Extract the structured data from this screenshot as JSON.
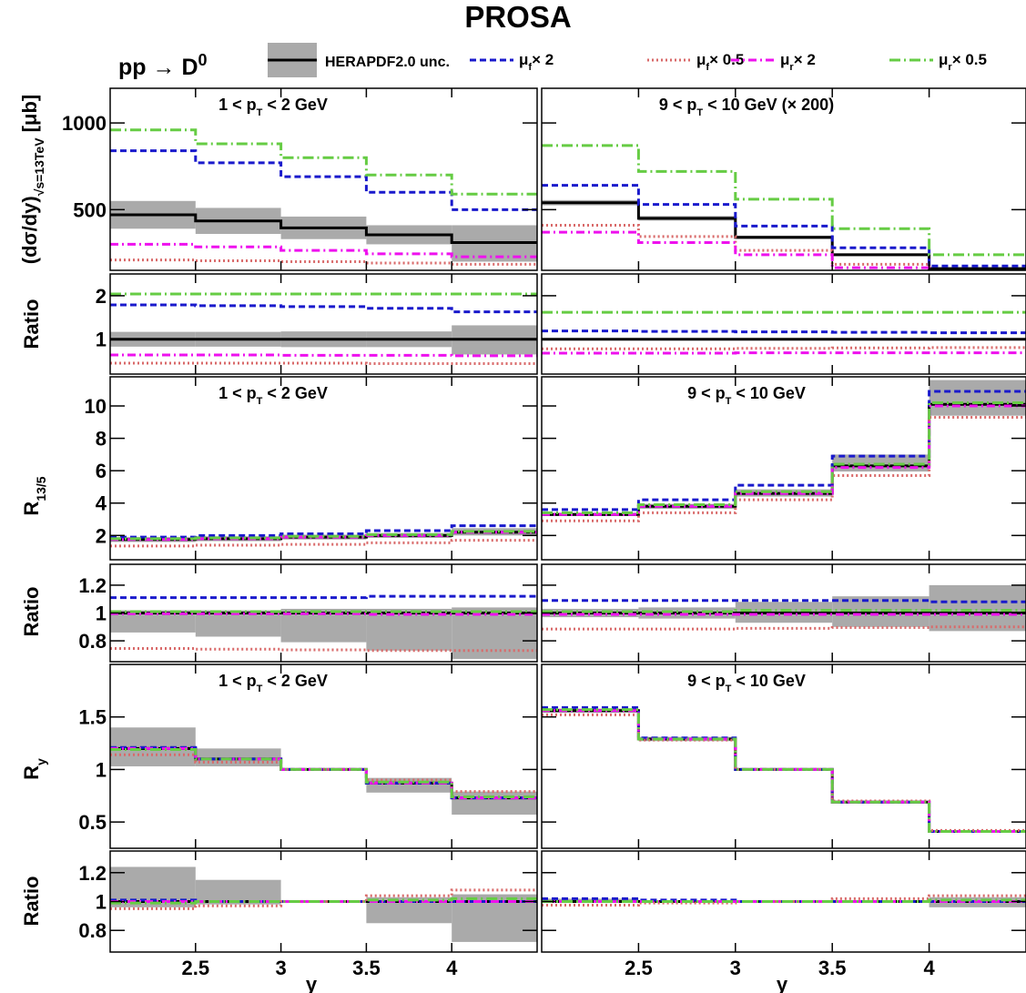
{
  "title": "PROSA",
  "process": {
    "main": "pp",
    "arrow": "→",
    "particle": "D",
    "sup": "0"
  },
  "legend": [
    {
      "key": "herapdf",
      "label": "HERAPDF2.0 unc.",
      "color": "#000000",
      "style": "solid-band"
    },
    {
      "key": "muf2",
      "sym": "μ",
      "sub": "f",
      "suffix": "× 2",
      "color": "#1a1acc",
      "style": "dashed"
    },
    {
      "key": "muf05",
      "sym": "μ",
      "sub": "f",
      "suffix": "× 0.5",
      "color": "#d96a6a",
      "style": "dotted"
    },
    {
      "key": "mur2",
      "sym": "μ",
      "sub": "r",
      "suffix": "× 2",
      "color": "#ee11ee",
      "style": "dashdot"
    },
    {
      "key": "mur05",
      "sym": "μ",
      "sub": "r",
      "suffix": "× 0.5",
      "color": "#66cc44",
      "style": "dashdot-long"
    }
  ],
  "labels": {
    "xlabel": "y",
    "ratio": "Ratio",
    "xsec_ylabel": {
      "main": "(dσ/dy)",
      "sub": "√s=13TeV",
      "unit": "[μb]"
    },
    "r135_ylabel": {
      "main": "R",
      "sub": "13/5"
    },
    "ry_ylabel": {
      "main": "R",
      "sub": "y"
    }
  },
  "bins": [
    2.0,
    2.5,
    3.0,
    3.5,
    4.0,
    4.5
  ],
  "xticks": [
    2.5,
    3,
    3.5,
    4
  ],
  "columns": [
    {
      "key": "low",
      "range": {
        "pre": "1 < p",
        "sub": "T",
        "post": " <  2 GeV"
      },
      "scale_note": ""
    },
    {
      "key": "high",
      "range": {
        "pre": "9 < p",
        "sub": "T",
        "post": " < 10 GeV"
      },
      "scale_note": " (× 200)"
    }
  ],
  "chart_data": [
    {
      "type": "line",
      "id": "xsec-low",
      "ylim": [
        150,
        1200
      ],
      "yticks": [
        500,
        1000
      ],
      "central": [
        470,
        435,
        395,
        355,
        310
      ],
      "band": [
        [
          390,
          550
        ],
        [
          360,
          510
        ],
        [
          330,
          460
        ],
        [
          300,
          410
        ],
        [
          200,
          410
        ]
      ],
      "series": [
        {
          "key": "muf2",
          "values": [
            840,
            770,
            690,
            600,
            500
          ]
        },
        {
          "key": "muf05",
          "values": [
            210,
            205,
            200,
            192,
            185
          ]
        },
        {
          "key": "mur2",
          "values": [
            300,
            285,
            265,
            245,
            228
          ]
        },
        {
          "key": "mur05",
          "values": [
            960,
            880,
            800,
            700,
            590
          ]
        }
      ]
    },
    {
      "type": "line",
      "id": "xsec-high",
      "ylim": [
        150,
        1200
      ],
      "yticks": [
        500,
        1000
      ],
      "central": [
        540,
        450,
        340,
        240,
        160
      ],
      "band": [
        [
          525,
          555
        ],
        [
          437,
          463
        ],
        [
          330,
          350
        ],
        [
          232,
          248
        ],
        [
          152,
          168
        ]
      ],
      "series": [
        {
          "key": "muf2",
          "values": [
            640,
            530,
            405,
            280,
            175
          ]
        },
        {
          "key": "muf05",
          "values": [
            410,
            345,
            265,
            185,
            125
          ]
        },
        {
          "key": "mur2",
          "values": [
            370,
            310,
            240,
            165,
            110
          ]
        },
        {
          "key": "mur05",
          "values": [
            870,
            720,
            560,
            390,
            240
          ]
        }
      ]
    },
    {
      "type": "line",
      "id": "ratio1-low",
      "ylim": [
        0.2,
        2.5
      ],
      "yticks": [
        1,
        2
      ],
      "central": [
        1,
        1,
        1,
        1,
        1
      ],
      "band": [
        [
          0.83,
          1.17
        ],
        [
          0.83,
          1.17
        ],
        [
          0.82,
          1.18
        ],
        [
          0.82,
          1.18
        ],
        [
          0.65,
          1.32
        ]
      ],
      "series": [
        {
          "key": "muf2",
          "values": [
            1.79,
            1.77,
            1.75,
            1.71,
            1.63
          ]
        },
        {
          "key": "muf05",
          "values": [
            0.45,
            0.45,
            0.45,
            0.44,
            0.44
          ]
        },
        {
          "key": "mur2",
          "values": [
            0.64,
            0.64,
            0.63,
            0.63,
            0.62
          ]
        },
        {
          "key": "mur05",
          "values": [
            2.04,
            2.04,
            2.04,
            2.04,
            2.04
          ]
        }
      ]
    },
    {
      "type": "line",
      "id": "ratio1-high",
      "ylim": [
        0.2,
        2.5
      ],
      "yticks": [
        1,
        2
      ],
      "central": [
        1,
        1,
        1,
        1,
        1
      ],
      "band": [
        [
          0.98,
          1.02
        ],
        [
          0.98,
          1.02
        ],
        [
          0.98,
          1.02
        ],
        [
          0.98,
          1.02
        ],
        [
          0.98,
          1.02
        ]
      ],
      "series": [
        {
          "key": "muf2",
          "values": [
            1.19,
            1.18,
            1.17,
            1.16,
            1.15
          ]
        },
        {
          "key": "muf05",
          "values": [
            0.78,
            0.78,
            0.79,
            0.8,
            0.81
          ]
        },
        {
          "key": "mur2",
          "values": [
            0.68,
            0.68,
            0.69,
            0.69,
            0.69
          ]
        },
        {
          "key": "mur05",
          "values": [
            1.62,
            1.62,
            1.62,
            1.62,
            1.62
          ]
        }
      ]
    },
    {
      "type": "line",
      "id": "r135-low",
      "ylim": [
        0.5,
        11.8
      ],
      "yticks": [
        2,
        4,
        6,
        8,
        10
      ],
      "central": [
        1.75,
        1.8,
        1.9,
        2.0,
        2.2
      ],
      "band": [
        [
          1.6,
          1.9
        ],
        [
          1.65,
          1.95
        ],
        [
          1.75,
          2.05
        ],
        [
          1.85,
          2.15
        ],
        [
          2.0,
          2.45
        ]
      ],
      "series": [
        {
          "key": "muf2",
          "values": [
            1.9,
            2.0,
            2.1,
            2.3,
            2.6
          ]
        },
        {
          "key": "muf05",
          "values": [
            1.35,
            1.4,
            1.45,
            1.55,
            1.7
          ]
        },
        {
          "key": "mur2",
          "values": [
            1.75,
            1.8,
            1.9,
            2.0,
            2.2
          ]
        },
        {
          "key": "mur05",
          "values": [
            1.8,
            1.85,
            1.95,
            2.05,
            2.25
          ]
        }
      ]
    },
    {
      "type": "line",
      "id": "r135-high",
      "ylim": [
        0.5,
        11.8
      ],
      "yticks": [
        2,
        4,
        6,
        8,
        10
      ],
      "central": [
        3.3,
        3.8,
        4.6,
        6.3,
        10.1
      ],
      "band": [
        [
          3.2,
          3.4
        ],
        [
          3.65,
          3.95
        ],
        [
          4.4,
          4.85
        ],
        [
          5.95,
          7.0
        ],
        [
          9.4,
          11.6
        ]
      ],
      "series": [
        {
          "key": "muf2",
          "values": [
            3.6,
            4.2,
            5.1,
            6.9,
            10.9
          ]
        },
        {
          "key": "muf05",
          "values": [
            2.9,
            3.4,
            4.2,
            5.7,
            9.3
          ]
        },
        {
          "key": "mur2",
          "values": [
            3.3,
            3.8,
            4.6,
            6.2,
            10.0
          ]
        },
        {
          "key": "mur05",
          "values": [
            3.4,
            3.9,
            4.7,
            6.4,
            10.2
          ]
        }
      ]
    },
    {
      "type": "line",
      "id": "ratio2-low",
      "ylim": [
        0.65,
        1.35
      ],
      "yticks": [
        0.8,
        1,
        1.2
      ],
      "central": [
        1,
        1,
        1,
        1,
        1
      ],
      "band": [
        [
          0.86,
          1.02
        ],
        [
          0.83,
          1.02
        ],
        [
          0.79,
          1.03
        ],
        [
          0.73,
          1.03
        ],
        [
          0.67,
          1.04
        ]
      ],
      "series": [
        {
          "key": "muf2",
          "values": [
            1.11,
            1.11,
            1.11,
            1.12,
            1.12
          ]
        },
        {
          "key": "muf05",
          "values": [
            0.745,
            0.74,
            0.735,
            0.73,
            0.73
          ]
        },
        {
          "key": "mur2",
          "values": [
            0.995,
            0.995,
            0.995,
            0.99,
            0.99
          ]
        },
        {
          "key": "mur05",
          "values": [
            1.01,
            1.01,
            1.01,
            1.01,
            1.01
          ]
        }
      ]
    },
    {
      "type": "line",
      "id": "ratio2-high",
      "ylim": [
        0.65,
        1.35
      ],
      "yticks": [
        0.8,
        1,
        1.2
      ],
      "central": [
        1,
        1,
        1,
        1,
        1
      ],
      "band": [
        [
          0.97,
          1.03
        ],
        [
          0.96,
          1.04
        ],
        [
          0.93,
          1.08
        ],
        [
          0.9,
          1.12
        ],
        [
          0.87,
          1.2
        ]
      ],
      "series": [
        {
          "key": "muf2",
          "values": [
            1.09,
            1.09,
            1.09,
            1.09,
            1.08
          ]
        },
        {
          "key": "muf05",
          "values": [
            0.885,
            0.885,
            0.89,
            0.895,
            0.9
          ]
        },
        {
          "key": "mur2",
          "values": [
            0.99,
            0.99,
            0.99,
            0.99,
            0.99
          ]
        },
        {
          "key": "mur05",
          "values": [
            1.01,
            1.01,
            1.02,
            1.02,
            1.02
          ]
        }
      ]
    },
    {
      "type": "line",
      "id": "ry-low",
      "ylim": [
        0.25,
        2.0
      ],
      "yticks": [
        0.5,
        1,
        1.5
      ],
      "central": [
        1.2,
        1.1,
        1.0,
        0.87,
        0.73
      ],
      "band": [
        [
          1.03,
          1.4
        ],
        [
          1.03,
          1.2
        ],
        [
          1.0,
          1.0
        ],
        [
          0.78,
          0.92
        ],
        [
          0.57,
          0.79
        ]
      ],
      "series": [
        {
          "key": "muf2",
          "values": [
            1.21,
            1.1,
            1.0,
            0.87,
            0.73
          ]
        },
        {
          "key": "muf05",
          "values": [
            1.14,
            1.07,
            1.0,
            0.9,
            0.79
          ]
        },
        {
          "key": "mur2",
          "values": [
            1.2,
            1.1,
            1.0,
            0.87,
            0.73
          ]
        },
        {
          "key": "mur05",
          "values": [
            1.19,
            1.1,
            1.0,
            0.88,
            0.74
          ]
        }
      ]
    },
    {
      "type": "line",
      "id": "ry-high",
      "ylim": [
        0.25,
        2.0
      ],
      "yticks": [
        0.5,
        1,
        1.5
      ],
      "central": [
        1.56,
        1.29,
        1.0,
        0.69,
        0.41
      ],
      "band": [
        [
          1.54,
          1.58
        ],
        [
          1.27,
          1.31
        ],
        [
          1.0,
          1.0
        ],
        [
          0.68,
          0.7
        ],
        [
          0.4,
          0.42
        ]
      ],
      "series": [
        {
          "key": "muf2",
          "values": [
            1.59,
            1.3,
            1.0,
            0.69,
            0.41
          ]
        },
        {
          "key": "muf05",
          "values": [
            1.52,
            1.28,
            1.0,
            0.7,
            0.42
          ]
        },
        {
          "key": "mur2",
          "values": [
            1.56,
            1.29,
            1.0,
            0.69,
            0.41
          ]
        },
        {
          "key": "mur05",
          "values": [
            1.57,
            1.29,
            1.0,
            0.69,
            0.41
          ]
        }
      ]
    },
    {
      "type": "line",
      "id": "ratio3-low",
      "ylim": [
        0.65,
        1.35
      ],
      "yticks": [
        0.8,
        1,
        1.2
      ],
      "central": [
        1,
        1,
        1,
        1,
        1
      ],
      "band": [
        [
          0.96,
          1.24
        ],
        [
          0.98,
          1.15
        ],
        [
          0.99,
          1.01
        ],
        [
          0.85,
          1.03
        ],
        [
          0.72,
          1.05
        ]
      ],
      "series": [
        {
          "key": "muf2",
          "values": [
            1.01,
            1.0,
            1.0,
            1.0,
            1.0
          ]
        },
        {
          "key": "muf05",
          "values": [
            0.95,
            0.97,
            1.0,
            1.04,
            1.08
          ]
        },
        {
          "key": "mur2",
          "values": [
            1.0,
            1.0,
            1.0,
            1.0,
            1.0
          ]
        },
        {
          "key": "mur05",
          "values": [
            0.99,
            1.0,
            1.0,
            1.01,
            1.02
          ]
        }
      ]
    },
    {
      "type": "line",
      "id": "ratio3-high",
      "ylim": [
        0.65,
        1.35
      ],
      "yticks": [
        0.8,
        1,
        1.2
      ],
      "central": [
        1,
        1,
        1,
        1,
        1
      ],
      "band": [
        [
          0.99,
          1.02
        ],
        [
          0.99,
          1.01
        ],
        [
          0.99,
          1.01
        ],
        [
          0.99,
          1.01
        ],
        [
          0.96,
          1.03
        ]
      ],
      "series": [
        {
          "key": "muf2",
          "values": [
            1.02,
            1.01,
            1.0,
            1.0,
            1.0
          ]
        },
        {
          "key": "muf05",
          "values": [
            0.975,
            0.99,
            1.0,
            1.02,
            1.04
          ]
        },
        {
          "key": "mur2",
          "values": [
            1.0,
            1.0,
            1.0,
            1.0,
            1.0
          ]
        },
        {
          "key": "mur05",
          "values": [
            1.0,
            1.0,
            1.0,
            1.0,
            1.01
          ]
        }
      ]
    }
  ]
}
